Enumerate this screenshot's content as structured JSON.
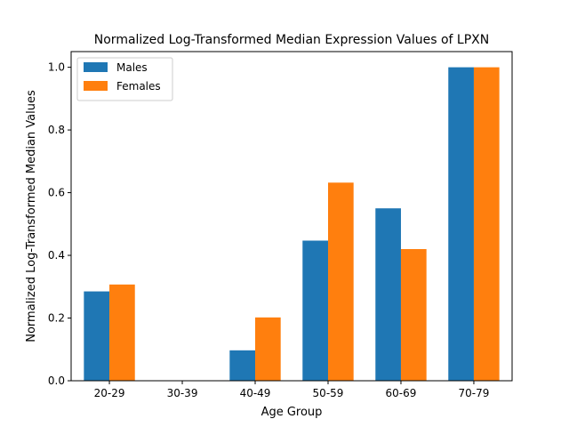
{
  "chart_data": {
    "type": "bar",
    "title": "Normalized Log-Transformed Median Expression Values of LPXN",
    "xlabel": "Age Group",
    "ylabel": "Normalized Log-Transformed Median Values",
    "categories": [
      "20-29",
      "30-39",
      "40-49",
      "50-59",
      "60-69",
      "70-79"
    ],
    "series": [
      {
        "name": "Males",
        "color": "#1f77b4",
        "values": [
          0.285,
          0.0,
          0.097,
          0.447,
          0.55,
          1.0
        ]
      },
      {
        "name": "Females",
        "color": "#ff7f0e",
        "values": [
          0.307,
          0.0,
          0.202,
          0.632,
          0.42,
          1.0
        ]
      }
    ],
    "ylim": [
      0,
      1.05
    ],
    "yticks": [
      0.0,
      0.2,
      0.4,
      0.6,
      0.8,
      1.0
    ],
    "ytick_labels": [
      "0.0",
      "0.2",
      "0.4",
      "0.6",
      "0.8",
      "1.0"
    ],
    "legend": "top-left",
    "grid": false
  }
}
